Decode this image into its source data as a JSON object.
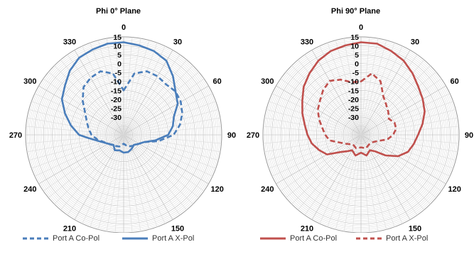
{
  "chart_data": [
    {
      "type": "polar",
      "title": "Phi 0° Plane",
      "angle_ticks": [
        "0",
        "30",
        "60",
        "90",
        "120",
        "150",
        "180",
        "210",
        "240",
        "270",
        "300",
        "330"
      ],
      "radial_ticks": [
        "15",
        "10",
        "5",
        "0",
        "-5",
        "-10",
        "-15",
        "-20",
        "-25",
        "-30"
      ],
      "radial_range": [
        -40,
        15
      ],
      "grid": true,
      "legend_position": "bottom",
      "series": [
        {
          "name": "Port A Co-Pol",
          "color": "#4a7ebb",
          "dash": true,
          "points": [
            [
              0,
              -15
            ],
            [
              10,
              -5
            ],
            [
              20,
              -2
            ],
            [
              30,
              -2
            ],
            [
              40,
              -3
            ],
            [
              50,
              -2
            ],
            [
              60,
              -3
            ],
            [
              70,
              -5
            ],
            [
              80,
              -8
            ],
            [
              90,
              -12
            ],
            [
              100,
              -20
            ],
            [
              110,
              -28
            ],
            [
              120,
              -30
            ],
            [
              140,
              -32
            ],
            [
              160,
              -33
            ],
            [
              180,
              -35
            ],
            [
              200,
              -33
            ],
            [
              220,
              -32
            ],
            [
              240,
              -30
            ],
            [
              260,
              -25
            ],
            [
              270,
              -22
            ],
            [
              280,
              -20
            ],
            [
              290,
              -18
            ],
            [
              300,
              -15
            ],
            [
              310,
              -10
            ],
            [
              320,
              -5
            ],
            [
              330,
              -3
            ],
            [
              340,
              -2
            ],
            [
              350,
              -5
            ]
          ]
        },
        {
          "name": "Port A X-Pol",
          "color": "#4a7ebb",
          "dash": false,
          "points": [
            [
              0,
              12
            ],
            [
              10,
              11
            ],
            [
              20,
              10
            ],
            [
              30,
              8
            ],
            [
              40,
              3
            ],
            [
              50,
              -2
            ],
            [
              60,
              -5
            ],
            [
              70,
              -10
            ],
            [
              80,
              -12
            ],
            [
              90,
              -15
            ],
            [
              100,
              -22
            ],
            [
              110,
              -28
            ],
            [
              120,
              -30
            ],
            [
              135,
              -32
            ],
            [
              150,
              -31
            ],
            [
              165,
              -30
            ],
            [
              180,
              -30
            ],
            [
              195,
              -31
            ],
            [
              210,
              -30
            ],
            [
              225,
              -32
            ],
            [
              240,
              -30
            ],
            [
              255,
              -26
            ],
            [
              265,
              -20
            ],
            [
              270,
              -15
            ],
            [
              280,
              -10
            ],
            [
              290,
              -5
            ],
            [
              300,
              0
            ],
            [
              310,
              3
            ],
            [
              320,
              7
            ],
            [
              330,
              10
            ],
            [
              340,
              11
            ],
            [
              350,
              12
            ]
          ]
        }
      ]
    },
    {
      "type": "polar",
      "title": "Phi 90° Plane",
      "angle_ticks": [
        "0",
        "30",
        "60",
        "90",
        "120",
        "150",
        "180",
        "210",
        "240",
        "270",
        "300",
        "330"
      ],
      "radial_ticks": [
        "15",
        "10",
        "5",
        "0",
        "-5",
        "-10",
        "-15",
        "-20",
        "-25",
        "-30"
      ],
      "radial_range": [
        -40,
        15
      ],
      "grid": true,
      "legend_position": "bottom",
      "series": [
        {
          "name": "Port A Co-Pol",
          "color": "#c0504d",
          "dash": false,
          "points": [
            [
              0,
              12
            ],
            [
              10,
              12
            ],
            [
              20,
              10
            ],
            [
              30,
              8
            ],
            [
              40,
              5
            ],
            [
              50,
              2
            ],
            [
              60,
              0
            ],
            [
              70,
              -2
            ],
            [
              80,
              -5
            ],
            [
              90,
              -8
            ],
            [
              100,
              -10
            ],
            [
              110,
              -12
            ],
            [
              120,
              -16
            ],
            [
              130,
              -22
            ],
            [
              140,
              -28
            ],
            [
              150,
              -30
            ],
            [
              165,
              -28
            ],
            [
              180,
              -30
            ],
            [
              195,
              -28
            ],
            [
              210,
              -30
            ],
            [
              220,
              -28
            ],
            [
              230,
              -25
            ],
            [
              240,
              -18
            ],
            [
              250,
              -15
            ],
            [
              260,
              -12
            ],
            [
              270,
              -10
            ],
            [
              280,
              -8
            ],
            [
              290,
              -5
            ],
            [
              300,
              -2
            ],
            [
              310,
              2
            ],
            [
              320,
              5
            ],
            [
              330,
              8
            ],
            [
              340,
              10
            ],
            [
              350,
              11
            ]
          ]
        },
        {
          "name": "Port A X-Pol",
          "color": "#c0504d",
          "dash": true,
          "points": [
            [
              0,
              -10
            ],
            [
              10,
              -5
            ],
            [
              20,
              -8
            ],
            [
              30,
              -15
            ],
            [
              40,
              -18
            ],
            [
              50,
              -20
            ],
            [
              60,
              -22
            ],
            [
              70,
              -20
            ],
            [
              80,
              -20
            ],
            [
              90,
              -22
            ],
            [
              100,
              -25
            ],
            [
              110,
              -30
            ],
            [
              120,
              -32
            ],
            [
              140,
              -33
            ],
            [
              160,
              -32
            ],
            [
              180,
              -33
            ],
            [
              200,
              -32
            ],
            [
              220,
              -33
            ],
            [
              240,
              -30
            ],
            [
              260,
              -22
            ],
            [
              270,
              -20
            ],
            [
              280,
              -18
            ],
            [
              290,
              -15
            ],
            [
              300,
              -12
            ],
            [
              310,
              -10
            ],
            [
              320,
              -7
            ],
            [
              330,
              -5
            ],
            [
              340,
              -7
            ],
            [
              350,
              -10
            ]
          ]
        }
      ]
    }
  ]
}
